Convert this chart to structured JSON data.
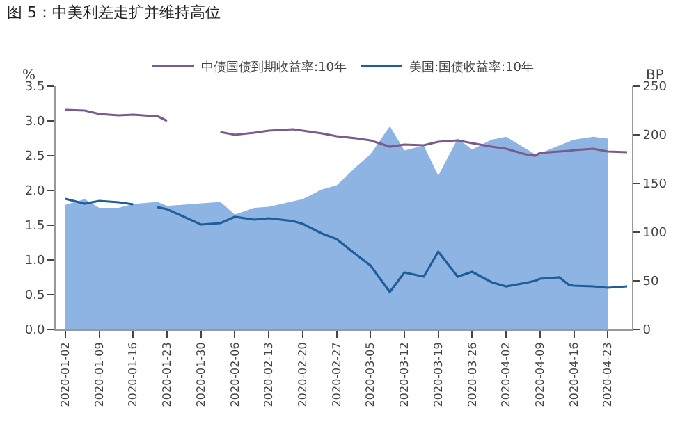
{
  "chart_data": {
    "type": "line",
    "title": "图 5：中美利差走扩并维持高位",
    "ylabel": "%",
    "y2label": "BP",
    "x": [
      "2020-01-02",
      "2020-01-06",
      "2020-01-09",
      "2020-01-13",
      "2020-01-16",
      "2020-01-20",
      "2020-01-21",
      "2020-01-23",
      "2020-01-30",
      "2020-02-03",
      "2020-02-06",
      "2020-02-10",
      "2020-02-13",
      "2020-02-18",
      "2020-02-20",
      "2020-02-24",
      "2020-02-27",
      "2020-03-02",
      "2020-03-05",
      "2020-03-09",
      "2020-03-12",
      "2020-03-16",
      "2020-03-19",
      "2020-03-23",
      "2020-03-26",
      "2020-03-30",
      "2020-04-02",
      "2020-04-06",
      "2020-04-08",
      "2020-04-09",
      "2020-04-13",
      "2020-04-15",
      "2020-04-16",
      "2020-04-20",
      "2020-04-23",
      "2020-04-27"
    ],
    "series": [
      {
        "type": "area",
        "axis": "y2",
        "color": "#8db4e2",
        "values": [
          128,
          134,
          125,
          125,
          129,
          null,
          131,
          127,
          null,
          131,
          118,
          125,
          126,
          null,
          134,
          144,
          148,
          167,
          180,
          209,
          184,
          189,
          158,
          196,
          185,
          195,
          198,
          null,
          180,
          181,
          null,
          193,
          195,
          198,
          196,
          null
        ]
      },
      {
        "name": "中债国债到期收益率:10年",
        "color": "#7b5a8c",
        "values": [
          3.16,
          3.15,
          3.1,
          3.08,
          3.09,
          3.07,
          3.07,
          3.0,
          null,
          2.84,
          2.8,
          2.83,
          2.86,
          2.88,
          2.86,
          2.82,
          2.78,
          2.75,
          2.72,
          2.63,
          2.66,
          2.65,
          2.7,
          2.72,
          2.68,
          2.63,
          2.6,
          2.52,
          2.5,
          2.54,
          2.56,
          2.57,
          2.58,
          2.6,
          2.56,
          2.55
        ]
      },
      {
        "name": "美国:国债收益率:10年",
        "color": "#1f5e9a",
        "values": [
          1.88,
          1.81,
          1.85,
          1.83,
          1.8,
          null,
          1.76,
          1.73,
          1.51,
          1.53,
          1.62,
          1.58,
          1.6,
          1.56,
          1.52,
          1.38,
          1.3,
          1.08,
          0.92,
          0.54,
          0.82,
          0.76,
          1.12,
          0.76,
          0.83,
          0.68,
          0.62,
          0.67,
          0.7,
          0.73,
          0.75,
          0.64,
          0.63,
          0.62,
          0.6,
          0.62
        ]
      }
    ],
    "xlim": [
      "2019-12-31",
      "2020-04-28"
    ],
    "xticks": [
      "2020-01-02",
      "2020-01-09",
      "2020-01-16",
      "2020-01-23",
      "2020-01-30",
      "2020-02-06",
      "2020-02-13",
      "2020-02-20",
      "2020-02-27",
      "2020-03-05",
      "2020-03-12",
      "2020-03-19",
      "2020-03-26",
      "2020-04-02",
      "2020-04-09",
      "2020-04-16",
      "2020-04-23"
    ],
    "ylim": [
      0,
      3.5
    ],
    "yticks": [
      {
        "value": 0,
        "label": "0.0"
      },
      {
        "value": 0.5,
        "label": "0.5"
      },
      {
        "value": 1,
        "label": "1.0"
      },
      {
        "value": 1.5,
        "label": "1.5"
      },
      {
        "value": 2,
        "label": "2.0"
      },
      {
        "value": 2.5,
        "label": "2.5"
      },
      {
        "value": 3,
        "label": "3.0"
      },
      {
        "value": 3.5,
        "label": "3.5"
      }
    ],
    "y2lim": [
      0,
      250
    ],
    "y2ticks": [
      0,
      50,
      100,
      150,
      200,
      250
    ],
    "legend": "top",
    "marker": "none",
    "line_style": "solid"
  }
}
